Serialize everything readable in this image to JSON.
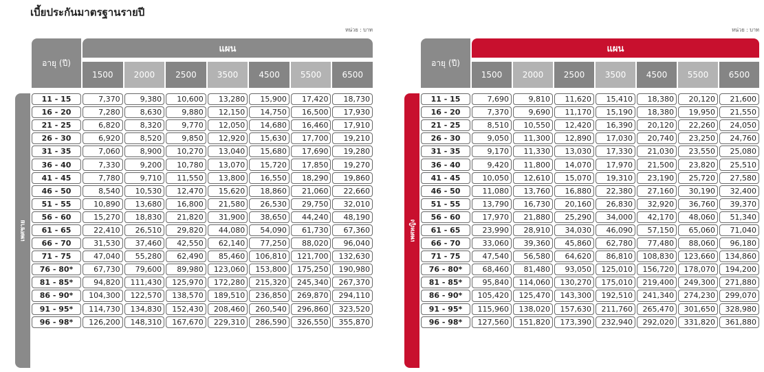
{
  "title": "เบี้ยประกันมาตรฐานรายปี",
  "unit": "หน่วย : บาท",
  "age_header": "อายุ (ปี)",
  "plan_header": "แผน",
  "plans": [
    "1500",
    "2000",
    "2500",
    "3500",
    "4500",
    "5500",
    "6500"
  ],
  "colors": {
    "male_accent": "#8a8a8a",
    "female_accent": "#c8102e",
    "plan_dark": "#858585",
    "plan_light": "#b3b3b3"
  },
  "male": {
    "label": "เพศชาย",
    "rows": [
      {
        "age": "11 - 15",
        "values": [
          "7,370",
          "9,380",
          "10,600",
          "13,280",
          "15,900",
          "17,420",
          "18,730"
        ]
      },
      {
        "age": "16 - 20",
        "values": [
          "7,280",
          "8,630",
          "9,880",
          "12,150",
          "14,750",
          "16,500",
          "17,930"
        ]
      },
      {
        "age": "21 - 25",
        "values": [
          "6,820",
          "8,320",
          "9,770",
          "12,050",
          "14,680",
          "16,460",
          "17,910"
        ]
      },
      {
        "age": "26 - 30",
        "values": [
          "6,920",
          "8,520",
          "9,850",
          "12,920",
          "15,630",
          "17,700",
          "19,210"
        ]
      },
      {
        "age": "31 - 35",
        "values": [
          "7,060",
          "8,900",
          "10,270",
          "13,040",
          "15,680",
          "17,690",
          "19,280"
        ]
      },
      {
        "age": "36 - 40",
        "values": [
          "7,330",
          "9,200",
          "10,780",
          "13,070",
          "15,720",
          "17,850",
          "19,270"
        ]
      },
      {
        "age": "41 - 45",
        "values": [
          "7,780",
          "9,710",
          "11,550",
          "13,800",
          "16,550",
          "18,290",
          "19,860"
        ]
      },
      {
        "age": "46 - 50",
        "values": [
          "8,540",
          "10,530",
          "12,470",
          "15,620",
          "18,860",
          "21,060",
          "22,660"
        ]
      },
      {
        "age": "51 - 55",
        "values": [
          "10,890",
          "13,680",
          "16,800",
          "21,580",
          "26,530",
          "29,750",
          "32,010"
        ]
      },
      {
        "age": "56 - 60",
        "values": [
          "15,270",
          "18,830",
          "21,820",
          "31,900",
          "38,650",
          "44,240",
          "48,190"
        ]
      },
      {
        "age": "61 - 65",
        "values": [
          "22,410",
          "26,510",
          "29,820",
          "44,080",
          "54,090",
          "61,730",
          "67,360"
        ]
      },
      {
        "age": "66 - 70",
        "values": [
          "31,530",
          "37,460",
          "42,550",
          "62,140",
          "77,250",
          "88,020",
          "96,040"
        ]
      },
      {
        "age": "71 - 75",
        "values": [
          "47,040",
          "55,280",
          "62,490",
          "85,460",
          "106,810",
          "121,700",
          "132,630"
        ]
      },
      {
        "age": "76 - 80*",
        "values": [
          "67,730",
          "79,600",
          "89,980",
          "123,060",
          "153,800",
          "175,250",
          "190,980"
        ]
      },
      {
        "age": "81 - 85*",
        "values": [
          "94,820",
          "111,430",
          "125,970",
          "172,280",
          "215,320",
          "245,340",
          "267,370"
        ]
      },
      {
        "age": "86 - 90*",
        "values": [
          "104,300",
          "122,570",
          "138,570",
          "189,510",
          "236,850",
          "269,870",
          "294,110"
        ]
      },
      {
        "age": "91 - 95*",
        "values": [
          "114,730",
          "134,830",
          "152,430",
          "208,460",
          "260,540",
          "296,860",
          "323,520"
        ]
      },
      {
        "age": "96 - 98*",
        "values": [
          "126,200",
          "148,310",
          "167,670",
          "229,310",
          "286,590",
          "326,550",
          "355,870"
        ]
      }
    ]
  },
  "female": {
    "label": "เพศหญิง",
    "rows": [
      {
        "age": "11 - 15",
        "values": [
          "7,690",
          "9,810",
          "11,620",
          "15,410",
          "18,380",
          "20,120",
          "21,600"
        ]
      },
      {
        "age": "16 - 20",
        "values": [
          "7,370",
          "9,690",
          "11,170",
          "15,190",
          "18,380",
          "19,950",
          "21,550"
        ]
      },
      {
        "age": "21 - 25",
        "values": [
          "8,510",
          "10,550",
          "12,420",
          "16,390",
          "20,120",
          "22,260",
          "24,050"
        ]
      },
      {
        "age": "26 - 30",
        "values": [
          "9,050",
          "11,300",
          "12,890",
          "17,030",
          "20,740",
          "23,250",
          "24,760"
        ]
      },
      {
        "age": "31 - 35",
        "values": [
          "9,170",
          "11,330",
          "13,030",
          "17,330",
          "21,030",
          "23,550",
          "25,080"
        ]
      },
      {
        "age": "36 - 40",
        "values": [
          "9,420",
          "11,800",
          "14,070",
          "17,970",
          "21,500",
          "23,820",
          "25,510"
        ]
      },
      {
        "age": "41 - 45",
        "values": [
          "10,050",
          "12,610",
          "15,070",
          "19,310",
          "23,190",
          "25,720",
          "27,580"
        ]
      },
      {
        "age": "46 - 50",
        "values": [
          "11,080",
          "13,760",
          "16,880",
          "22,380",
          "27,160",
          "30,190",
          "32,400"
        ]
      },
      {
        "age": "51 - 55",
        "values": [
          "13,790",
          "16,730",
          "20,160",
          "26,830",
          "32,920",
          "36,760",
          "39,370"
        ]
      },
      {
        "age": "56 - 60",
        "values": [
          "17,970",
          "21,880",
          "25,290",
          "34,000",
          "42,170",
          "48,060",
          "51,340"
        ]
      },
      {
        "age": "61 - 65",
        "values": [
          "23,990",
          "28,910",
          "34,030",
          "46,090",
          "57,150",
          "65,060",
          "71,040"
        ]
      },
      {
        "age": "66 - 70",
        "values": [
          "33,060",
          "39,360",
          "45,860",
          "62,780",
          "77,480",
          "88,060",
          "96,180"
        ]
      },
      {
        "age": "71 - 75",
        "values": [
          "47,540",
          "56,580",
          "64,620",
          "86,810",
          "108,830",
          "123,660",
          "134,860"
        ]
      },
      {
        "age": "76 - 80*",
        "values": [
          "68,460",
          "81,480",
          "93,050",
          "125,010",
          "156,720",
          "178,070",
          "194,200"
        ]
      },
      {
        "age": "81 - 85*",
        "values": [
          "95,840",
          "114,060",
          "130,270",
          "175,010",
          "219,400",
          "249,300",
          "271,880"
        ]
      },
      {
        "age": "86 - 90*",
        "values": [
          "105,420",
          "125,470",
          "143,300",
          "192,510",
          "241,340",
          "274,230",
          "299,070"
        ]
      },
      {
        "age": "91 - 95*",
        "values": [
          "115,960",
          "138,020",
          "157,630",
          "211,760",
          "265,470",
          "301,650",
          "328,980"
        ]
      },
      {
        "age": "96 - 98*",
        "values": [
          "127,560",
          "151,820",
          "173,390",
          "232,940",
          "292,020",
          "331,820",
          "361,880"
        ]
      }
    ]
  }
}
